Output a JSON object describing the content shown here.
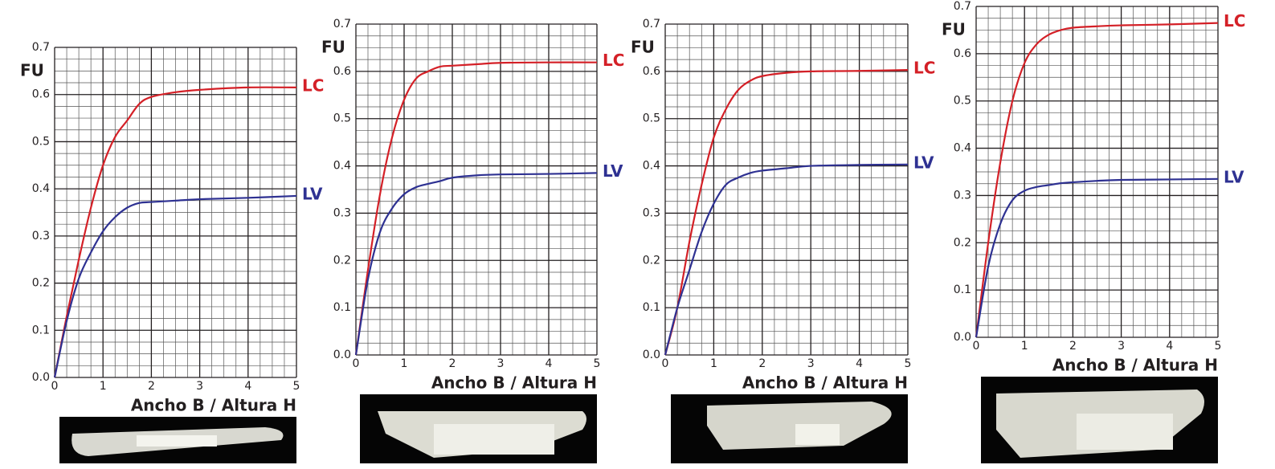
{
  "chart_data": [
    {
      "type": "line",
      "x_label": "Ancho B / Altura H",
      "y_label": "FU",
      "xlim": [
        0,
        5
      ],
      "ylim": [
        0,
        0.7
      ],
      "xticks": [
        0,
        1,
        2,
        3,
        4,
        5
      ],
      "yticks": [
        {
          "value": 0,
          "label": "0.0"
        },
        0.1,
        0.2,
        0.3,
        0.4,
        0.5,
        0.6,
        0.7
      ],
      "grid": true,
      "x": [
        0,
        0.25,
        0.5,
        0.75,
        1,
        1.25,
        1.5,
        1.75,
        2,
        2.5,
        3,
        4,
        5
      ],
      "series": [
        {
          "name": "LC",
          "color": "#d42027",
          "values": [
            0,
            0.13,
            0.25,
            0.36,
            0.45,
            0.51,
            0.545,
            0.58,
            0.595,
            0.605,
            0.61,
            0.615,
            0.615
          ]
        },
        {
          "name": "LV",
          "color": "#2e3192",
          "values": [
            0,
            0.12,
            0.21,
            0.265,
            0.31,
            0.34,
            0.36,
            0.37,
            0.372,
            0.375,
            0.378,
            0.381,
            0.385
          ]
        }
      ]
    },
    {
      "type": "line",
      "x_label": "Ancho B / Altura H",
      "y_label": "FU",
      "xlim": [
        0,
        5
      ],
      "ylim": [
        0,
        0.7
      ],
      "xticks": [
        0,
        1,
        2,
        3,
        4,
        5
      ],
      "yticks": [
        {
          "value": 0,
          "label": "0.0"
        },
        0.1,
        0.2,
        0.3,
        0.4,
        0.5,
        0.6,
        0.7
      ],
      "grid": true,
      "x": [
        0,
        0.25,
        0.5,
        0.75,
        1,
        1.25,
        1.5,
        1.75,
        2,
        2.5,
        3,
        4,
        5
      ],
      "series": [
        {
          "name": "LC",
          "color": "#d42027",
          "values": [
            0,
            0.18,
            0.34,
            0.46,
            0.54,
            0.585,
            0.6,
            0.61,
            0.612,
            0.615,
            0.618,
            0.619,
            0.619
          ]
        },
        {
          "name": "LV",
          "color": "#2e3192",
          "values": [
            0,
            0.16,
            0.26,
            0.31,
            0.34,
            0.355,
            0.362,
            0.368,
            0.375,
            0.38,
            0.382,
            0.383,
            0.385
          ]
        }
      ]
    },
    {
      "type": "line",
      "x_label": "Ancho B / Altura H",
      "y_label": "FU",
      "xlim": [
        0,
        5
      ],
      "ylim": [
        0,
        0.7
      ],
      "xticks": [
        0,
        1,
        2,
        3,
        4,
        5
      ],
      "yticks": [
        {
          "value": 0,
          "label": "0.0"
        },
        0.1,
        0.2,
        0.3,
        0.4,
        0.5,
        0.6,
        0.7
      ],
      "grid": true,
      "x": [
        0,
        0.25,
        0.5,
        0.75,
        1,
        1.25,
        1.5,
        1.75,
        2,
        2.5,
        3,
        4,
        5
      ],
      "series": [
        {
          "name": "LC",
          "color": "#d42027",
          "values": [
            0,
            0.1,
            0.24,
            0.36,
            0.46,
            0.52,
            0.56,
            0.58,
            0.59,
            0.597,
            0.6,
            0.601,
            0.603
          ]
        },
        {
          "name": "LV",
          "color": "#2e3192",
          "values": [
            0,
            0.1,
            0.18,
            0.26,
            0.32,
            0.36,
            0.375,
            0.385,
            0.39,
            0.395,
            0.4,
            0.402,
            0.403
          ]
        }
      ]
    },
    {
      "type": "line",
      "x_label": "Ancho B / Altura H",
      "y_label": "FU",
      "xlim": [
        0,
        5
      ],
      "ylim": [
        0,
        0.7
      ],
      "xticks": [
        0,
        1,
        2,
        3,
        4,
        5
      ],
      "yticks": [
        {
          "value": 0,
          "label": "0.0"
        },
        0.1,
        0.2,
        0.3,
        0.4,
        0.5,
        0.6,
        0.7
      ],
      "grid": true,
      "x": [
        0,
        0.25,
        0.5,
        0.75,
        1,
        1.25,
        1.5,
        1.75,
        2,
        2.5,
        3,
        4,
        5
      ],
      "series": [
        {
          "name": "LC",
          "color": "#d42027",
          "values": [
            0,
            0.2,
            0.37,
            0.5,
            0.58,
            0.62,
            0.64,
            0.65,
            0.655,
            0.658,
            0.66,
            0.662,
            0.665
          ]
        },
        {
          "name": "LV",
          "color": "#2e3192",
          "values": [
            0,
            0.15,
            0.24,
            0.29,
            0.31,
            0.318,
            0.322,
            0.326,
            0.328,
            0.331,
            0.333,
            0.334,
            0.335
          ]
        }
      ]
    }
  ]
}
